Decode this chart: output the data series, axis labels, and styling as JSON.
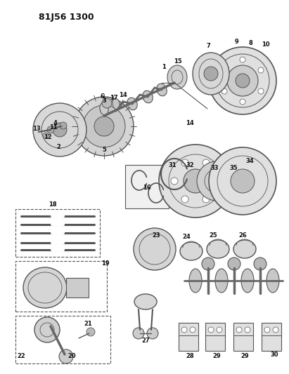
{
  "title": "81J56 1300",
  "bg_color": "#ffffff",
  "fg_color": "#111111",
  "fig_width": 4.11,
  "fig_height": 5.33,
  "dpi": 100,
  "gray": "#555555",
  "light_gray": "#cccccc",
  "mid_gray": "#aaaaaa",
  "dark_gray": "#333333"
}
